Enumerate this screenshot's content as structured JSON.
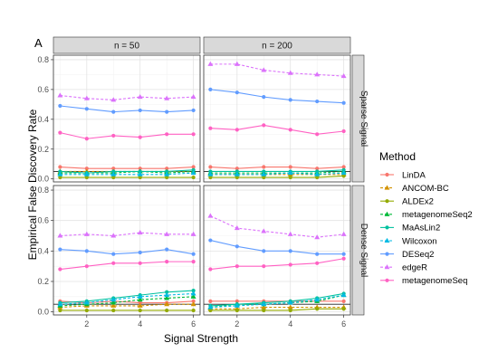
{
  "chart_data": {
    "type": "line",
    "panel_tag": "A",
    "xlabel": "Signal Strength",
    "ylabel": "Empirical False Discovery Rate",
    "x": [
      1,
      2,
      3,
      4,
      5,
      6
    ],
    "xticks": [
      "2",
      "4",
      "6"
    ],
    "xtick_values": [
      2,
      4,
      6
    ],
    "xlim": [
      0.75,
      6.25
    ],
    "ylim": [
      -0.02,
      0.83
    ],
    "yticks": [
      "0.0",
      "0.2",
      "0.4",
      "0.6",
      "0.8"
    ],
    "ytick_values": [
      0,
      0.2,
      0.4,
      0.6,
      0.8
    ],
    "reference_line": 0.05,
    "grid": true,
    "legend": {
      "title": "Method",
      "placement": "right"
    },
    "columns": [
      "n = 50",
      "n = 200"
    ],
    "rows": [
      "Sparse Signal",
      "Dense Signal"
    ],
    "methods": [
      {
        "name": "LinDA",
        "color": "#F8766D",
        "shape": "circle",
        "dash": false
      },
      {
        "name": "ANCOM-BC",
        "color": "#D39200",
        "shape": "triangle",
        "dash": true
      },
      {
        "name": "ALDEx2",
        "color": "#93AA00",
        "shape": "circle",
        "dash": false
      },
      {
        "name": "metagenomeSeq2",
        "color": "#00BA38",
        "shape": "triangle",
        "dash": true
      },
      {
        "name": "MaAsLin2",
        "color": "#00C19F",
        "shape": "circle",
        "dash": false
      },
      {
        "name": "Wilcoxon",
        "color": "#00B9E3",
        "shape": "triangle",
        "dash": true
      },
      {
        "name": "DESeq2",
        "color": "#619CFF",
        "shape": "circle",
        "dash": false
      },
      {
        "name": "edgeR",
        "color": "#DB72FB",
        "shape": "triangle",
        "dash": true
      },
      {
        "name": "metagenomeSeq",
        "color": "#FF61C3",
        "shape": "circle",
        "dash": false
      }
    ],
    "panels": [
      {
        "column": "n = 50",
        "row": "Sparse Signal",
        "series": [
          {
            "name": "LinDA",
            "values": [
              0.08,
              0.07,
              0.07,
              0.07,
              0.07,
              0.08
            ]
          },
          {
            "name": "ANCOM-BC",
            "values": [
              0.05,
              0.05,
              0.05,
              0.05,
              0.05,
              0.05
            ]
          },
          {
            "name": "ALDEx2",
            "values": [
              0.01,
              0.01,
              0.01,
              0.01,
              0.01,
              0.01
            ]
          },
          {
            "name": "metagenomeSeq2",
            "values": [
              0.04,
              0.04,
              0.04,
              0.05,
              0.04,
              0.05
            ]
          },
          {
            "name": "MaAsLin2",
            "values": [
              0.05,
              0.04,
              0.05,
              0.05,
              0.05,
              0.06
            ]
          },
          {
            "name": "Wilcoxon",
            "values": [
              0.03,
              0.03,
              0.03,
              0.03,
              0.03,
              0.04
            ]
          },
          {
            "name": "DESeq2",
            "values": [
              0.49,
              0.47,
              0.45,
              0.46,
              0.45,
              0.46
            ]
          },
          {
            "name": "edgeR",
            "values": [
              0.56,
              0.54,
              0.53,
              0.55,
              0.54,
              0.55
            ]
          },
          {
            "name": "metagenomeSeq",
            "values": [
              0.31,
              0.27,
              0.29,
              0.28,
              0.3,
              0.3
            ]
          }
        ]
      },
      {
        "column": "n = 200",
        "row": "Sparse Signal",
        "series": [
          {
            "name": "LinDA",
            "values": [
              0.08,
              0.07,
              0.08,
              0.08,
              0.07,
              0.08
            ]
          },
          {
            "name": "ANCOM-BC",
            "values": [
              0.03,
              0.03,
              0.03,
              0.03,
              0.03,
              0.03
            ]
          },
          {
            "name": "ALDEx2",
            "values": [
              0.01,
              0.01,
              0.01,
              0.01,
              0.01,
              0.02
            ]
          },
          {
            "name": "metagenomeSeq2",
            "values": [
              0.04,
              0.04,
              0.04,
              0.04,
              0.04,
              0.05
            ]
          },
          {
            "name": "MaAsLin2",
            "values": [
              0.05,
              0.05,
              0.05,
              0.05,
              0.05,
              0.06
            ]
          },
          {
            "name": "Wilcoxon",
            "values": [
              0.03,
              0.03,
              0.03,
              0.04,
              0.03,
              0.04
            ]
          },
          {
            "name": "DESeq2",
            "values": [
              0.6,
              0.58,
              0.55,
              0.53,
              0.52,
              0.51
            ]
          },
          {
            "name": "edgeR",
            "values": [
              0.77,
              0.77,
              0.73,
              0.71,
              0.7,
              0.69
            ]
          },
          {
            "name": "metagenomeSeq",
            "values": [
              0.34,
              0.33,
              0.36,
              0.33,
              0.3,
              0.32
            ]
          }
        ]
      },
      {
        "column": "n = 50",
        "row": "Dense Signal",
        "series": [
          {
            "name": "LinDA",
            "values": [
              0.07,
              0.06,
              0.07,
              0.06,
              0.06,
              0.07
            ]
          },
          {
            "name": "ANCOM-BC",
            "values": [
              0.03,
              0.04,
              0.04,
              0.04,
              0.05,
              0.05
            ]
          },
          {
            "name": "ALDEx2",
            "values": [
              0.01,
              0.01,
              0.01,
              0.01,
              0.01,
              0.01
            ]
          },
          {
            "name": "metagenomeSeq2",
            "values": [
              0.04,
              0.05,
              0.06,
              0.08,
              0.09,
              0.1
            ]
          },
          {
            "name": "MaAsLin2",
            "values": [
              0.06,
              0.07,
              0.09,
              0.11,
              0.13,
              0.14
            ]
          },
          {
            "name": "Wilcoxon",
            "values": [
              0.05,
              0.06,
              0.08,
              0.1,
              0.11,
              0.12
            ]
          },
          {
            "name": "DESeq2",
            "values": [
              0.41,
              0.4,
              0.38,
              0.39,
              0.41,
              0.38
            ]
          },
          {
            "name": "edgeR",
            "values": [
              0.5,
              0.51,
              0.5,
              0.52,
              0.51,
              0.51
            ]
          },
          {
            "name": "metagenomeSeq",
            "values": [
              0.28,
              0.3,
              0.32,
              0.32,
              0.33,
              0.33
            ]
          }
        ]
      },
      {
        "column": "n = 200",
        "row": "Dense Signal",
        "series": [
          {
            "name": "LinDA",
            "values": [
              0.07,
              0.07,
              0.07,
              0.07,
              0.07,
              0.07
            ]
          },
          {
            "name": "ANCOM-BC",
            "values": [
              0.02,
              0.02,
              0.03,
              0.03,
              0.03,
              0.03
            ]
          },
          {
            "name": "ALDEx2",
            "values": [
              0.01,
              0.01,
              0.01,
              0.01,
              0.02,
              0.02
            ]
          },
          {
            "name": "metagenomeSeq2",
            "values": [
              0.03,
              0.05,
              0.05,
              0.06,
              0.07,
              0.11
            ]
          },
          {
            "name": "MaAsLin2",
            "values": [
              0.04,
              0.05,
              0.06,
              0.07,
              0.09,
              0.12
            ]
          },
          {
            "name": "Wilcoxon",
            "values": [
              0.03,
              0.04,
              0.05,
              0.06,
              0.08,
              0.11
            ]
          },
          {
            "name": "DESeq2",
            "values": [
              0.47,
              0.43,
              0.4,
              0.4,
              0.38,
              0.38
            ]
          },
          {
            "name": "edgeR",
            "values": [
              0.63,
              0.55,
              0.53,
              0.51,
              0.49,
              0.51
            ]
          },
          {
            "name": "metagenomeSeq",
            "values": [
              0.28,
              0.3,
              0.3,
              0.31,
              0.32,
              0.35
            ]
          }
        ]
      }
    ]
  }
}
